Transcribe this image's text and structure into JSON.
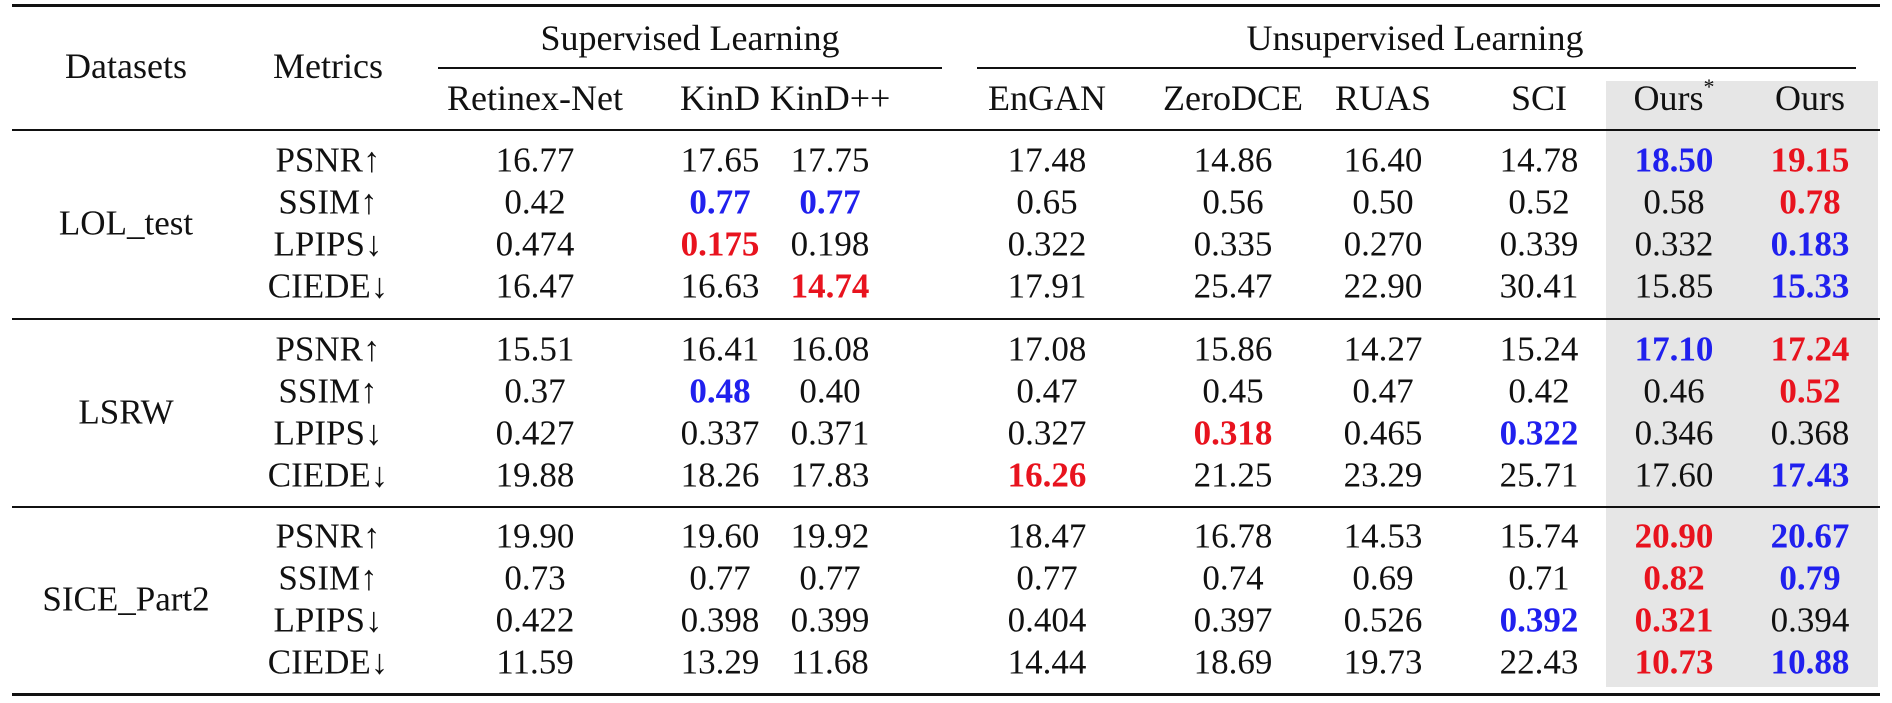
{
  "header": {
    "datasets": "Datasets",
    "metrics": "Metrics",
    "groups": [
      {
        "label": "Supervised Learning"
      },
      {
        "label": "Unsupervised Learning"
      }
    ],
    "methods": [
      "Retinex-Net",
      "KinD",
      "KinD++",
      "EnGAN",
      "ZeroDCE",
      "RUAS",
      "SCI",
      "Ours*",
      "Ours"
    ]
  },
  "highlight": {
    "best": "#e8131e",
    "second": "#2020ee",
    "shade": "#e6e6e6"
  },
  "sections": [
    {
      "dataset": "LOL_test",
      "rows": [
        {
          "metric": "PSNR↑",
          "values": [
            "16.77",
            "17.65",
            "17.75",
            "17.48",
            "14.86",
            "16.40",
            "14.78",
            "18.50",
            "19.15"
          ],
          "marks": [
            "",
            "",
            "",
            "",
            "",
            "",
            "",
            "second",
            "best"
          ]
        },
        {
          "metric": "SSIM↑",
          "values": [
            "0.42",
            "0.77",
            "0.77",
            "0.65",
            "0.56",
            "0.50",
            "0.52",
            "0.58",
            "0.78"
          ],
          "marks": [
            "",
            "second",
            "second",
            "",
            "",
            "",
            "",
            "",
            "best"
          ]
        },
        {
          "metric": "LPIPS↓",
          "values": [
            "0.474",
            "0.175",
            "0.198",
            "0.322",
            "0.335",
            "0.270",
            "0.339",
            "0.332",
            "0.183"
          ],
          "marks": [
            "",
            "best",
            "",
            "",
            "",
            "",
            "",
            "",
            "second"
          ]
        },
        {
          "metric": "CIEDE↓",
          "values": [
            "16.47",
            "16.63",
            "14.74",
            "17.91",
            "25.47",
            "22.90",
            "30.41",
            "15.85",
            "15.33"
          ],
          "marks": [
            "",
            "",
            "best",
            "",
            "",
            "",
            "",
            "",
            "second"
          ]
        }
      ]
    },
    {
      "dataset": "LSRW",
      "rows": [
        {
          "metric": "PSNR↑",
          "values": [
            "15.51",
            "16.41",
            "16.08",
            "17.08",
            "15.86",
            "14.27",
            "15.24",
            "17.10",
            "17.24"
          ],
          "marks": [
            "",
            "",
            "",
            "",
            "",
            "",
            "",
            "second",
            "best"
          ]
        },
        {
          "metric": "SSIM↑",
          "values": [
            "0.37",
            "0.48",
            "0.40",
            "0.47",
            "0.45",
            "0.47",
            "0.42",
            "0.46",
            "0.52"
          ],
          "marks": [
            "",
            "second",
            "",
            "",
            "",
            "",
            "",
            "",
            "best"
          ]
        },
        {
          "metric": "LPIPS↓",
          "values": [
            "0.427",
            "0.337",
            "0.371",
            "0.327",
            "0.318",
            "0.465",
            "0.322",
            "0.346",
            "0.368"
          ],
          "marks": [
            "",
            "",
            "",
            "",
            "best",
            "",
            "second",
            "",
            ""
          ]
        },
        {
          "metric": "CIEDE↓",
          "values": [
            "19.88",
            "18.26",
            "17.83",
            "16.26",
            "21.25",
            "23.29",
            "25.71",
            "17.60",
            "17.43"
          ],
          "marks": [
            "",
            "",
            "",
            "best",
            "",
            "",
            "",
            "",
            "second"
          ]
        }
      ]
    },
    {
      "dataset": "SICE_Part2",
      "rows": [
        {
          "metric": "PSNR↑",
          "values": [
            "19.90",
            "19.60",
            "19.92",
            "18.47",
            "16.78",
            "14.53",
            "15.74",
            "20.90",
            "20.67"
          ],
          "marks": [
            "",
            "",
            "",
            "",
            "",
            "",
            "",
            "best",
            "second"
          ]
        },
        {
          "metric": "SSIM↑",
          "values": [
            "0.73",
            "0.77",
            "0.77",
            "0.77",
            "0.74",
            "0.69",
            "0.71",
            "0.82",
            "0.79"
          ],
          "marks": [
            "",
            "",
            "",
            "",
            "",
            "",
            "",
            "best",
            "second"
          ]
        },
        {
          "metric": "LPIPS↓",
          "values": [
            "0.422",
            "0.398",
            "0.399",
            "0.404",
            "0.397",
            "0.526",
            "0.392",
            "0.321",
            "0.394"
          ],
          "marks": [
            "",
            "",
            "",
            "",
            "",
            "",
            "second",
            "best",
            ""
          ]
        },
        {
          "metric": "CIEDE↓",
          "values": [
            "11.59",
            "13.29",
            "11.68",
            "14.44",
            "18.69",
            "19.73",
            "22.43",
            "10.73",
            "10.88"
          ],
          "marks": [
            "",
            "",
            "",
            "",
            "",
            "",
            "",
            "best",
            "second"
          ]
        }
      ]
    }
  ]
}
